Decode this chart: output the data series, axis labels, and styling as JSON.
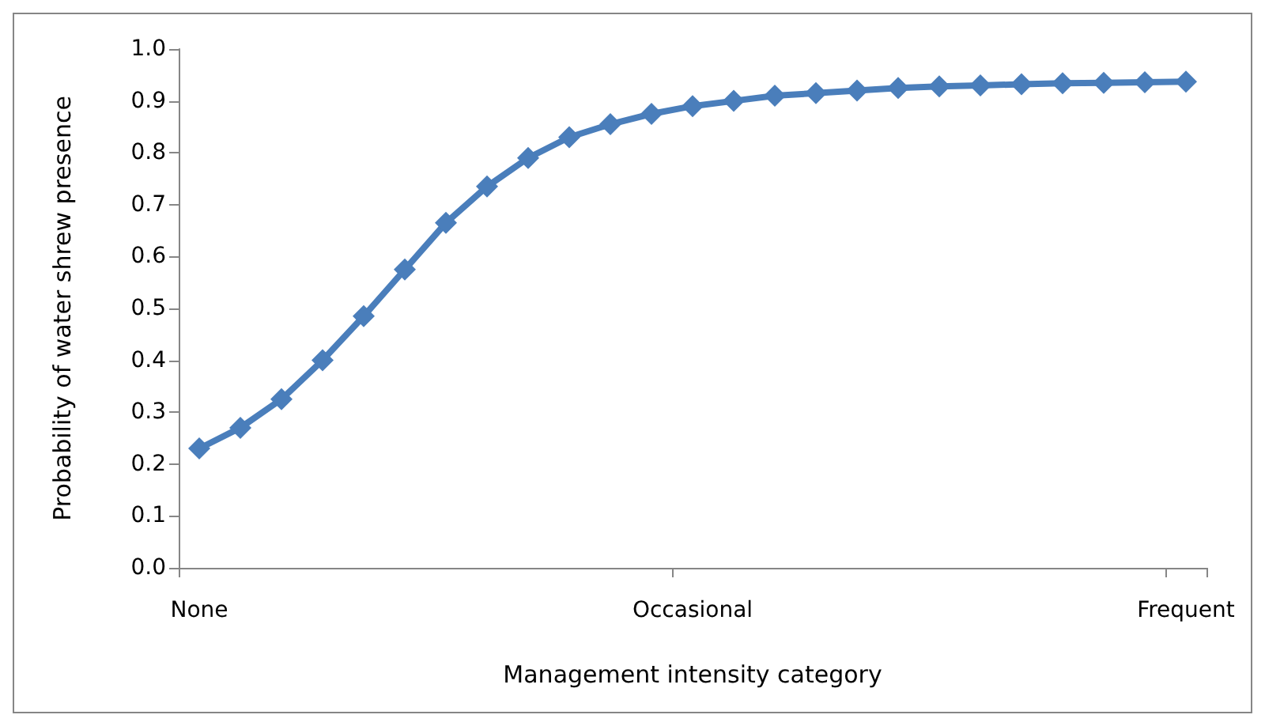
{
  "chart_data": {
    "type": "line",
    "xlabel": "Management intensity category",
    "ylabel": "Probability of water shrew presence",
    "categories": [
      "None",
      null,
      null,
      null,
      null,
      null,
      null,
      null,
      null,
      null,
      null,
      null,
      "Occasional",
      null,
      null,
      null,
      null,
      null,
      null,
      null,
      null,
      null,
      null,
      null,
      "Frequent"
    ],
    "series": [
      {
        "color": "#4a7ebb",
        "values": [
          0.23,
          0.27,
          0.325,
          0.4,
          0.485,
          0.575,
          0.665,
          0.735,
          0.79,
          0.83,
          0.855,
          0.875,
          0.89,
          0.9,
          0.91,
          0.915,
          0.92,
          0.925,
          0.928,
          0.93,
          0.932,
          0.934,
          0.935,
          0.936,
          0.937
        ]
      }
    ],
    "ylim": [
      0,
      1
    ],
    "yticks": [
      {
        "value": 0,
        "label": "0.0"
      },
      0.1,
      0.2,
      0.3,
      0.4,
      0.5,
      0.6,
      0.7,
      0.8,
      0.9,
      {
        "value": 1,
        "label": "1.0"
      }
    ],
    "grid": false,
    "marker": "diamond",
    "line_style": "solid"
  }
}
